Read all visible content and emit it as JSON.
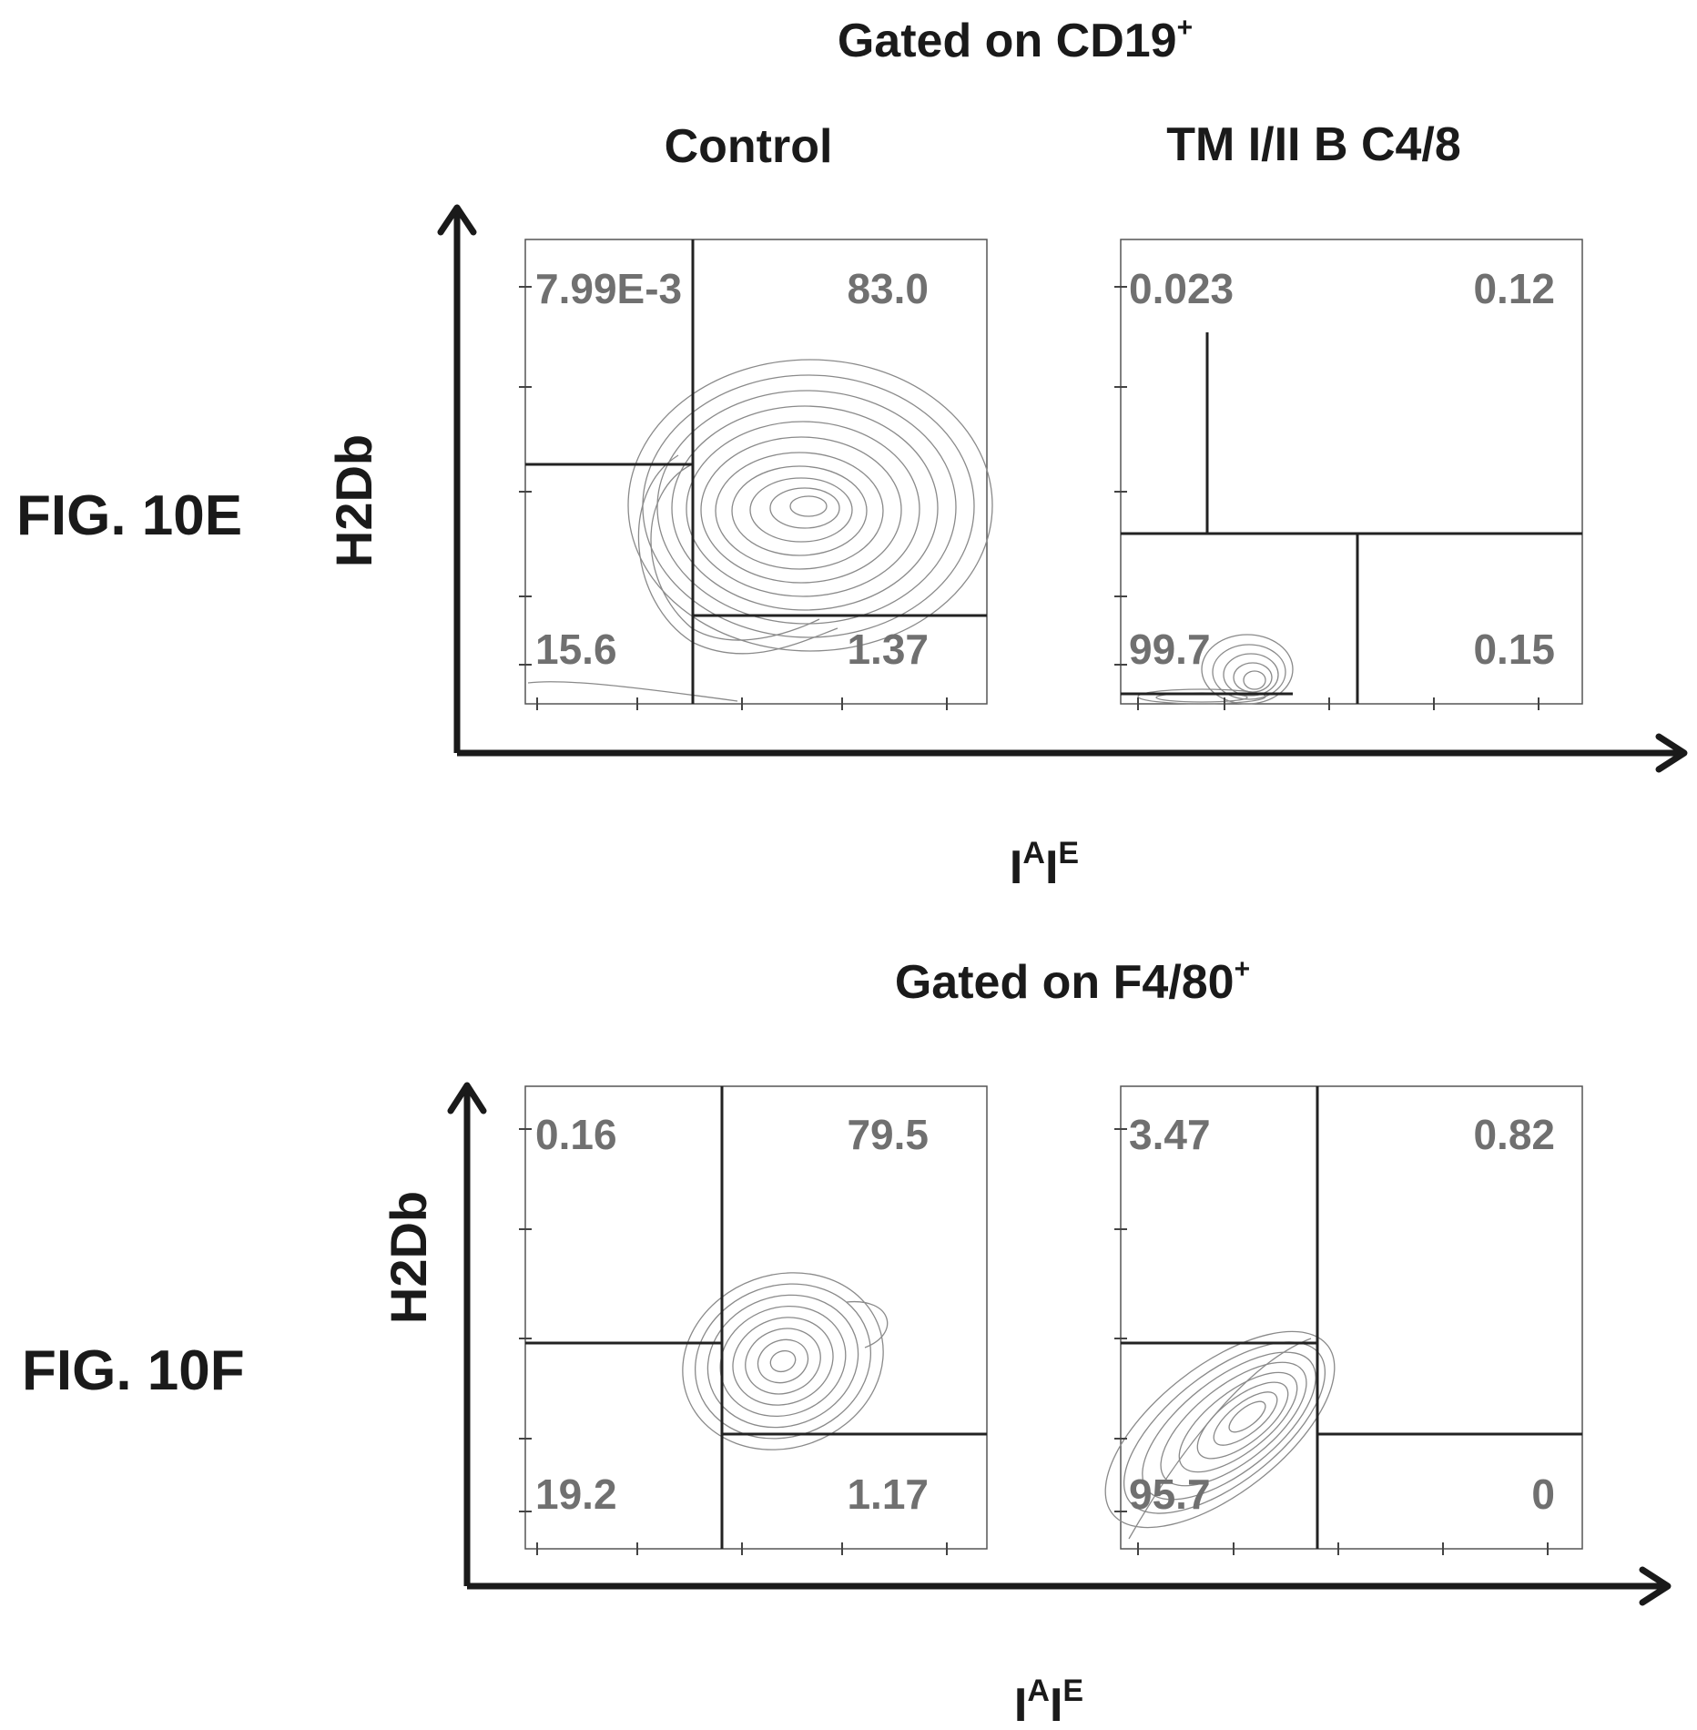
{
  "chart_data": [
    {
      "type": "contour",
      "figure_label": "FIG. 10E",
      "gating": "Gated on CD19",
      "gating_superscript": "+",
      "ylabel": "H2Db",
      "xlabel_main": "I",
      "xlabel_sup1": "A",
      "xlabel_mid": "I",
      "xlabel_sup2": "E",
      "panels": [
        {
          "title": "Control",
          "quadrants": {
            "upper_left": "7.99E-3",
            "upper_right": "83.0",
            "lower_left": "15.6",
            "lower_right": "1.37"
          }
        },
        {
          "title": "TM I/II B C4/8",
          "quadrants": {
            "upper_left": "0.023",
            "upper_right": "0.12",
            "lower_left": "99.7",
            "lower_right": "0.15"
          }
        }
      ]
    },
    {
      "type": "contour",
      "figure_label": "FIG. 10F",
      "gating": "Gated on F4/80",
      "gating_superscript": "+",
      "ylabel": "H2Db",
      "xlabel_main": "I",
      "xlabel_sup1": "A",
      "xlabel_mid": "I",
      "xlabel_sup2": "E",
      "panels": [
        {
          "title": "",
          "quadrants": {
            "upper_left": "0.16",
            "upper_right": "79.5",
            "lower_left": "19.2",
            "lower_right": "1.17"
          }
        },
        {
          "title": "",
          "quadrants": {
            "upper_left": "3.47",
            "upper_right": "0.82",
            "lower_left": "95.7",
            "lower_right": "0"
          }
        }
      ]
    }
  ]
}
